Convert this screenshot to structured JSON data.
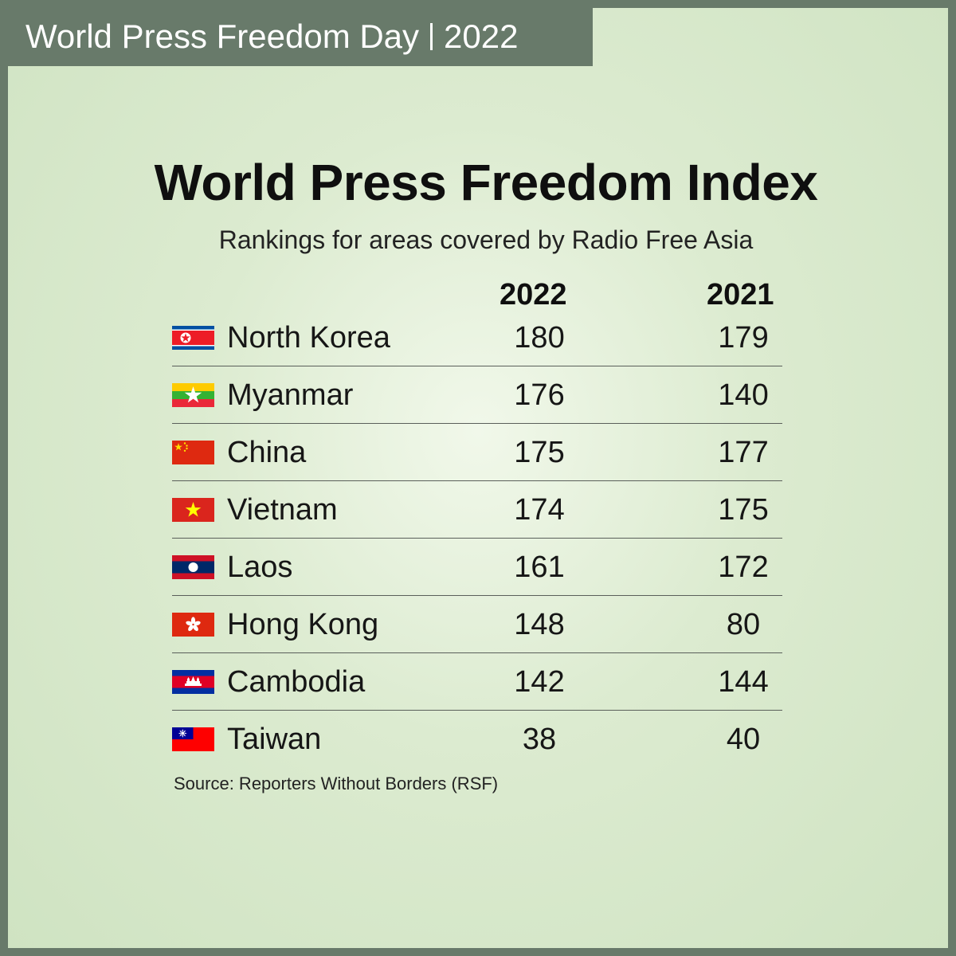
{
  "banner": {
    "title": "World Press Freedom Day",
    "year": "2022"
  },
  "title": "World Press Freedom Index",
  "subtitle": "Rankings for areas covered by Radio Free Asia",
  "columns": [
    "2022",
    "2021"
  ],
  "rows": [
    {
      "country": "North Korea",
      "flag": "north-korea-flag",
      "rank_2022": "180",
      "rank_2021": "179"
    },
    {
      "country": "Myanmar",
      "flag": "myanmar-flag",
      "rank_2022": "176",
      "rank_2021": "140"
    },
    {
      "country": "China",
      "flag": "china-flag",
      "rank_2022": "175",
      "rank_2021": "177"
    },
    {
      "country": "Vietnam",
      "flag": "vietnam-flag",
      "rank_2022": "174",
      "rank_2021": "175"
    },
    {
      "country": "Laos",
      "flag": "laos-flag",
      "rank_2022": "161",
      "rank_2021": "172"
    },
    {
      "country": "Hong Kong",
      "flag": "hong-kong-flag",
      "rank_2022": "148",
      "rank_2021": "80"
    },
    {
      "country": "Cambodia",
      "flag": "cambodia-flag",
      "rank_2022": "142",
      "rank_2021": "144"
    },
    {
      "country": "Taiwan",
      "flag": "taiwan-flag",
      "rank_2022": "38",
      "rank_2021": "40"
    }
  ],
  "source": "Source: Reporters Without Borders (RSF)",
  "colors": {
    "frame": "#687a6a",
    "background": "#dcebd0",
    "text": "#111111"
  }
}
